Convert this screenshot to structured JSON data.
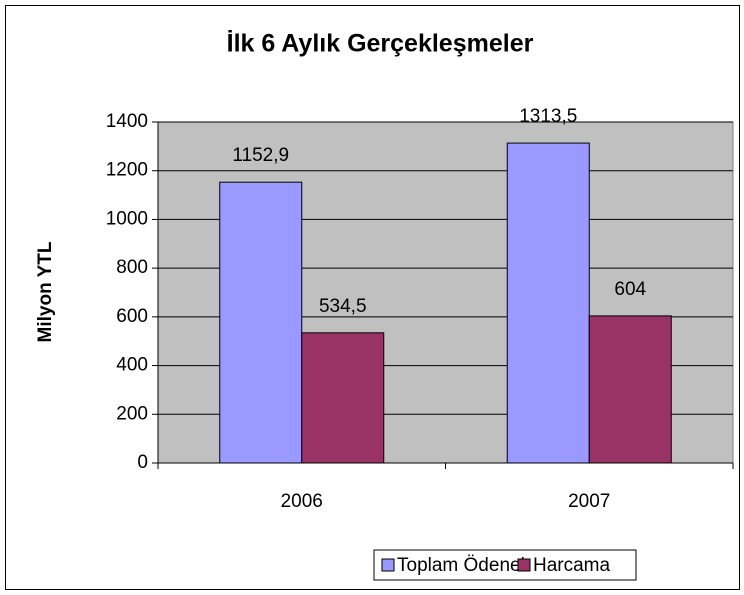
{
  "chart_data": {
    "type": "bar",
    "title": "İlk 6 Aylık Gerçekleşmeler",
    "ylabel": "Milyon YTL",
    "categories": [
      "2006",
      "2007"
    ],
    "series": [
      {
        "name": "Toplam Ödenek",
        "color": "#9999ff",
        "values": [
          1152.9,
          1313.5
        ],
        "value_labels": [
          "1152,9",
          "1313,5"
        ]
      },
      {
        "name": "Harcama",
        "color": "#993366",
        "values": [
          534.5,
          604
        ],
        "value_labels": [
          "534,5",
          "604"
        ]
      }
    ],
    "ylim": [
      0,
      1400
    ],
    "yticks": [
      0,
      200,
      400,
      600,
      800,
      1000,
      1200,
      1400
    ],
    "grid": true,
    "legend": "bottom"
  }
}
